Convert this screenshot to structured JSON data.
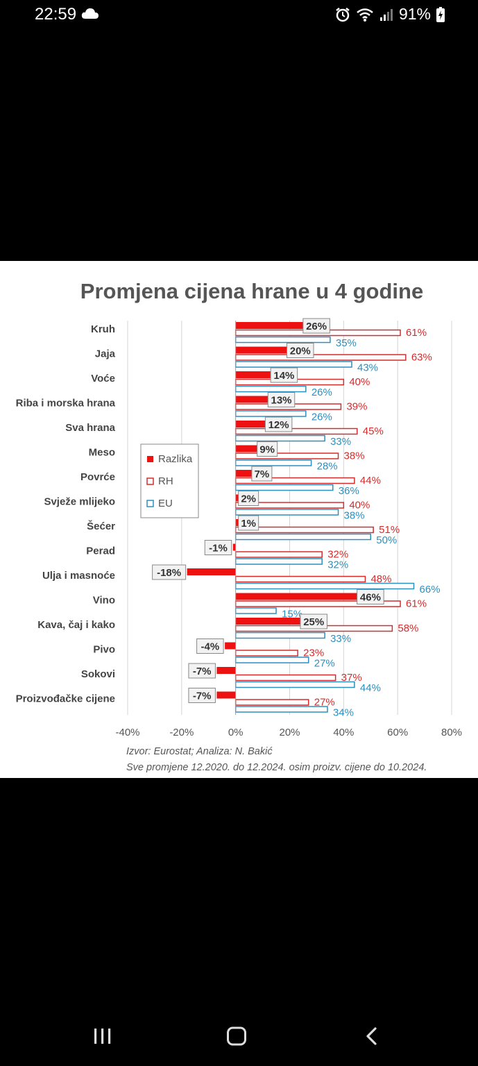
{
  "status_bar": {
    "time": "22:59",
    "battery": "91%",
    "icons": [
      "cloud-icon",
      "alarm-icon",
      "wifi-icon",
      "signal-icon",
      "battery-charging-icon"
    ]
  },
  "chart_data": {
    "type": "bar",
    "orientation": "horizontal",
    "title": "Promjena cijena hrane u 4 godine",
    "categories": [
      "Kruh",
      "Jaja",
      "Voće",
      "Riba i morska hrana",
      "Sva hrana",
      "Meso",
      "Povrće",
      "Svježe mlijeko",
      "Šećer",
      "Perad",
      "Ulja i masnoće",
      "Vino",
      "Kava, čaj i kako",
      "Pivo",
      "Sokovi",
      "Proizvođačke cijene"
    ],
    "series": [
      {
        "name": "Razlika",
        "color": "#ee1111",
        "style": "filled",
        "values": [
          26,
          20,
          14,
          13,
          12,
          9,
          7,
          2,
          1,
          -1,
          -18,
          46,
          25,
          -4,
          -7,
          -7
        ]
      },
      {
        "name": "RH",
        "color": "#d62b2b",
        "style": "outline",
        "values": [
          61,
          63,
          40,
          39,
          45,
          38,
          44,
          40,
          51,
          32,
          48,
          61,
          58,
          23,
          37,
          27
        ]
      },
      {
        "name": "EU",
        "color": "#2b8fbf",
        "style": "outline",
        "values": [
          35,
          43,
          26,
          26,
          33,
          28,
          36,
          38,
          50,
          32,
          66,
          15,
          33,
          27,
          44,
          34
        ]
      }
    ],
    "xlim": [
      -40,
      80
    ],
    "xticks": [
      "-40%",
      "-20%",
      "0%",
      "20%",
      "40%",
      "60%",
      "80%"
    ],
    "grid": true,
    "legend_position": "left-middle",
    "notes": [
      "Izvor: Eurostat; Analiza: N. Bakić",
      "Sve promjene 12.2020. do 12.2024. osim proizv. cijene do 10.2024."
    ]
  },
  "nav_bar": {
    "buttons": [
      "recents-icon",
      "home-icon",
      "back-icon"
    ]
  }
}
